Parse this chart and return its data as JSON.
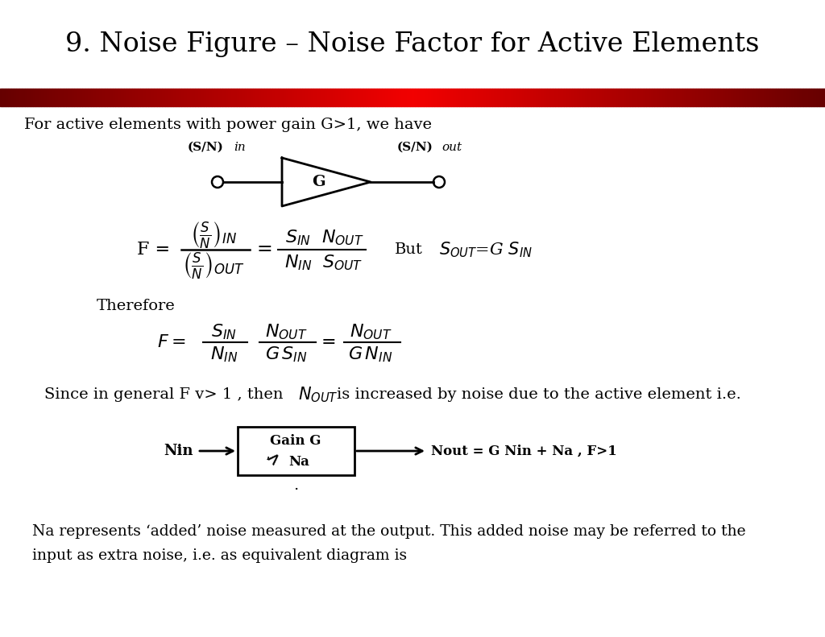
{
  "title": "9. Noise Figure – Noise Factor for Active Elements",
  "title_fontsize": 24,
  "title_color": "#000000",
  "bg_color": "#ffffff",
  "text1": "For active elements with power gain G>1, we have",
  "text2": "Therefore",
  "text3": "Since in general F v> 1 , then",
  "text4": "is increased by noise due to the active element i.e.",
  "text5": "Na represents ‘added’ noise measured at the output. This added noise may be referred to the",
  "text6": "input as extra noise, i.e. as equivalent diagram is",
  "fig_width": 10.24,
  "fig_height": 7.91,
  "dpi": 100
}
